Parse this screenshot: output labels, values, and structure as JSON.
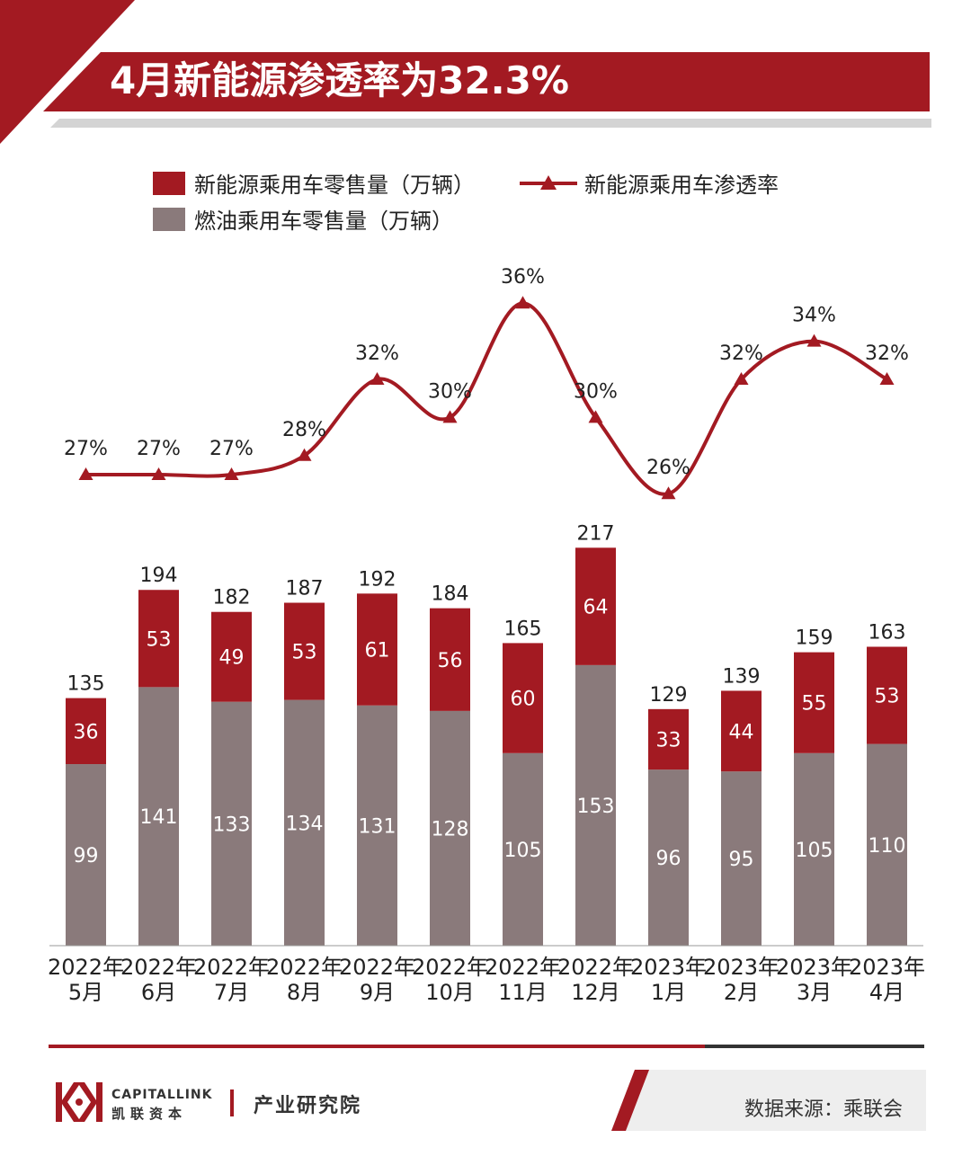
{
  "title": "4月新能源渗透率为32.3%",
  "colors": {
    "accent": "#a31a22",
    "nev_bar": "#a31a22",
    "ice_bar": "#8a7a7b",
    "line": "#a31a22",
    "header_gray": "#d4d4d4",
    "footer_dark": "#333333"
  },
  "footer": {
    "brand_en": "CAPITALLINK",
    "brand_cn": "凯联资本",
    "institute": "产业研究院",
    "source": "数据来源：乘联会"
  },
  "chart_data": {
    "type": "bar",
    "stacked": true,
    "categories": [
      "2022年\n5月",
      "2022年\n6月",
      "2022年\n7月",
      "2022年\n8月",
      "2022年\n9月",
      "2022年\n10月",
      "2022年\n11月",
      "2022年\n12月",
      "2023年\n1月",
      "2023年\n2月",
      "2023年\n3月",
      "2023年\n4月"
    ],
    "series": [
      {
        "name": "燃油乘用车零售量（万辆）",
        "type": "bar",
        "values": [
          99,
          141,
          133,
          134,
          131,
          128,
          105,
          153,
          96,
          95,
          105,
          110
        ]
      },
      {
        "name": "新能源乘用车零售量（万辆）",
        "type": "bar",
        "values": [
          36,
          53,
          49,
          53,
          61,
          56,
          60,
          64,
          33,
          44,
          55,
          53
        ]
      },
      {
        "name": "新能源乘用车渗透率",
        "type": "line",
        "values": [
          27,
          27,
          27,
          28,
          32,
          30,
          36,
          30,
          26,
          32,
          34,
          32
        ],
        "labels": [
          "27%",
          "27%",
          "27%",
          "28%",
          "32%",
          "30%",
          "36%",
          "30%",
          "26%",
          "32%",
          "34%",
          "32%"
        ]
      }
    ],
    "totals": [
      135,
      194,
      182,
      187,
      192,
      184,
      165,
      217,
      129,
      139,
      159,
      163
    ],
    "legend_position": "top-left",
    "grid": false
  }
}
